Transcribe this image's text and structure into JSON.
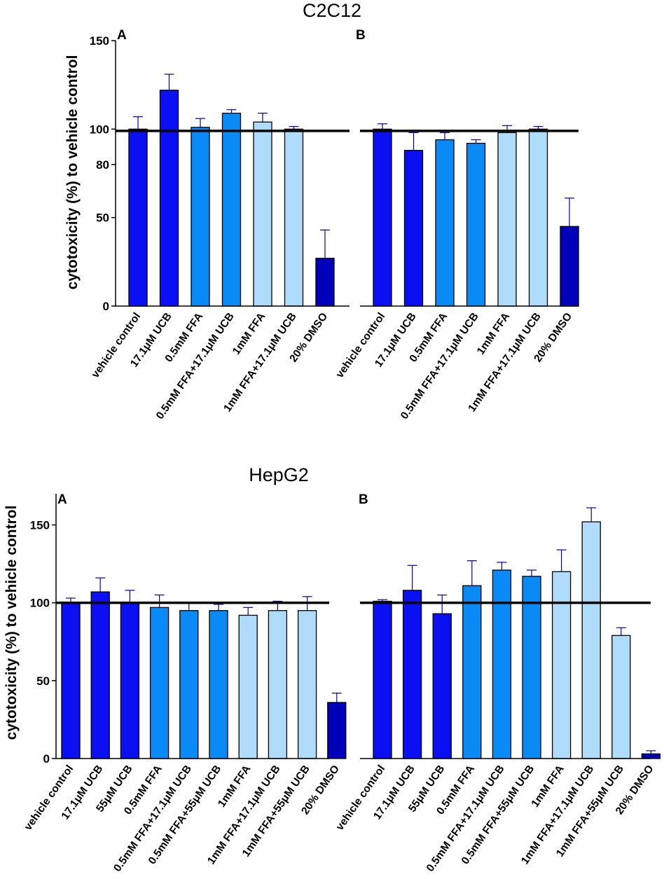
{
  "colors": {
    "blue": "#0a10f2",
    "mid": "#0a8af5",
    "light": "#aedcfa",
    "dark": "#0000b8",
    "error": "#0000b8",
    "axis": "#000000",
    "reference": "#000000"
  },
  "chart_data": [
    {
      "type": "bar",
      "group": "C2C12",
      "panel": "A",
      "title": "C2C12",
      "ylabel": "cytotoxicity (%) to vehicle control",
      "xlabel": "",
      "ylim": [
        0,
        150
      ],
      "yticks": [
        0,
        50,
        80,
        100,
        150
      ],
      "reference_line": 99,
      "categories": [
        "vehicle control",
        "17.1μM UCB",
        "0.5mM FFA",
        "0.5mM FFA+17.1μM UCB",
        "1mM FFA",
        "1mM FFA+17.1μM UCB",
        "20% DMSO"
      ],
      "values": [
        100,
        122,
        101,
        109,
        104,
        100,
        27
      ],
      "errors": [
        7,
        9,
        5,
        2,
        5,
        1.5,
        16
      ],
      "bar_colors": [
        "blue",
        "blue",
        "mid",
        "mid",
        "light",
        "light",
        "dark"
      ]
    },
    {
      "type": "bar",
      "group": "C2C12",
      "panel": "B",
      "title": "",
      "ylabel": "",
      "xlabel": "",
      "ylim": [
        0,
        150
      ],
      "yticks": [],
      "reference_line": 99,
      "categories": [
        "vehicle control",
        "17.1μM UCB",
        "0.5mM FFA",
        "0.5mM FFA+17.1μM UCB",
        "1mM FFA",
        "1mM FFA+17.1μM UCB",
        "20% DMSO"
      ],
      "values": [
        100,
        88,
        94,
        92,
        98,
        100,
        45
      ],
      "errors": [
        3,
        10,
        4,
        2,
        4,
        1.5,
        16
      ],
      "bar_colors": [
        "blue",
        "blue",
        "mid",
        "mid",
        "light",
        "light",
        "dark"
      ]
    },
    {
      "type": "bar",
      "group": "HepG2",
      "panel": "A",
      "title": "HepG2",
      "ylabel": "cytotoxicity (%) to vehicle control",
      "xlabel": "",
      "ylim": [
        0,
        170
      ],
      "yticks": [
        0,
        50,
        100,
        150
      ],
      "reference_line": 100,
      "categories": [
        "vehicle control",
        "17.1μM UCB",
        "55μM UCB",
        "0.5mM FFA",
        "0.5mM FFA+17.1μM UCB",
        "0.5mM FFA+55μM UCB",
        "1mM FFA",
        "1mM FFA+17.1μM UCB",
        "1mM FFA+55μM UCB",
        "20% DMSO"
      ],
      "values": [
        100,
        107,
        100,
        97,
        95,
        95,
        92,
        95,
        95,
        36
      ],
      "errors": [
        3,
        9,
        8,
        8,
        5,
        4,
        5,
        6,
        9,
        6
      ],
      "bar_colors": [
        "blue",
        "blue",
        "blue",
        "mid",
        "mid",
        "mid",
        "light",
        "light",
        "light",
        "dark"
      ]
    },
    {
      "type": "bar",
      "group": "HepG2",
      "panel": "B",
      "title": "",
      "ylabel": "",
      "xlabel": "",
      "ylim": [
        0,
        170
      ],
      "yticks": [],
      "reference_line": 100,
      "categories": [
        "vehicle control",
        "17.1μM UCB",
        "55μM UCB",
        "0.5mM FFA",
        "0.5mM FFA+17.1μM UCB",
        "0.5mM FFA+55μM UCB",
        "1mM FFA",
        "1mM FFA+17.1μM UCB",
        "1mM FFA+55μM UCB",
        "20% DMSO"
      ],
      "values": [
        101,
        108,
        93,
        111,
        121,
        117,
        120,
        152,
        79,
        3
      ],
      "errors": [
        1,
        16,
        12,
        16,
        5,
        4,
        14,
        9,
        5,
        2
      ],
      "bar_colors": [
        "blue",
        "blue",
        "blue",
        "mid",
        "mid",
        "mid",
        "light",
        "light",
        "light",
        "dark"
      ]
    }
  ]
}
